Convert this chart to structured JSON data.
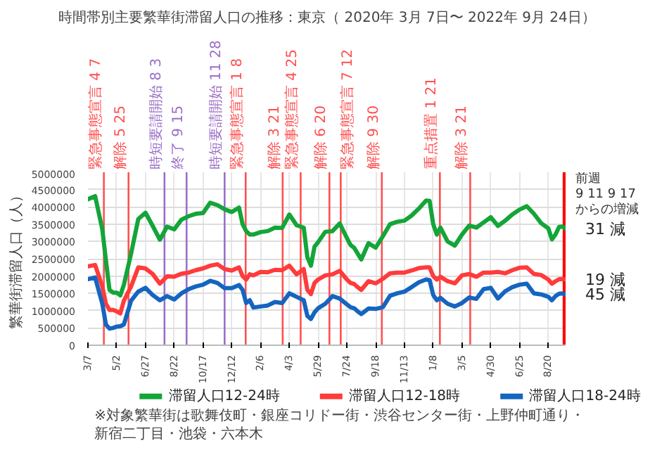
{
  "chart_data": {
    "type": "line",
    "title": "時間帯別主要繁華街滞留人口の推移：東京（ 2020年 3月 7日〜 2022年 9月 24日）",
    "ylabel": "繁華街滞留人口（人）",
    "x": [
      "2020-03-07",
      "2020-03-21",
      "2020-04-04",
      "2020-04-11",
      "2020-04-18",
      "2020-04-25",
      "2020-05-02",
      "2020-05-09",
      "2020-05-16",
      "2020-05-30",
      "2020-06-13",
      "2020-06-27",
      "2020-07-11",
      "2020-07-25",
      "2020-08-08",
      "2020-08-22",
      "2020-09-05",
      "2020-09-19",
      "2020-10-03",
      "2020-10-17",
      "2020-10-31",
      "2020-11-14",
      "2020-11-28",
      "2020-12-12",
      "2020-12-26",
      "2021-01-02",
      "2021-01-09",
      "2021-01-16",
      "2021-01-23",
      "2021-02-06",
      "2021-02-20",
      "2021-03-06",
      "2021-03-20",
      "2021-04-03",
      "2021-04-17",
      "2021-05-01",
      "2021-05-08",
      "2021-05-15",
      "2021-05-22",
      "2021-05-29",
      "2021-06-12",
      "2021-06-26",
      "2021-07-10",
      "2021-07-24",
      "2021-07-31",
      "2021-08-07",
      "2021-08-14",
      "2021-08-21",
      "2021-09-04",
      "2021-09-18",
      "2021-10-02",
      "2021-10-16",
      "2021-10-30",
      "2021-11-13",
      "2021-11-27",
      "2021-12-11",
      "2021-12-25",
      "2022-01-01",
      "2022-01-08",
      "2022-01-15",
      "2022-01-22",
      "2022-02-05",
      "2022-02-19",
      "2022-03-05",
      "2022-03-19",
      "2022-04-02",
      "2022-04-16",
      "2022-04-30",
      "2022-05-14",
      "2022-05-28",
      "2022-06-11",
      "2022-06-25",
      "2022-07-09",
      "2022-07-23",
      "2022-08-06",
      "2022-08-20",
      "2022-08-27",
      "2022-09-03",
      "2022-09-10",
      "2022-09-17",
      "2022-09-24"
    ],
    "series": [
      {
        "name": "滞留人口12-24時",
        "color": "#13a538",
        "values": [
          4220000,
          4310000,
          3350000,
          2450000,
          1600000,
          1520000,
          1520000,
          1440000,
          1750000,
          2650000,
          3650000,
          3830000,
          3450000,
          3050000,
          3430000,
          3350000,
          3630000,
          3730000,
          3800000,
          3820000,
          4120000,
          4050000,
          3930000,
          3850000,
          3980000,
          3500000,
          3300000,
          3200000,
          3200000,
          3270000,
          3300000,
          3400000,
          3390000,
          3780000,
          3470000,
          3400000,
          2550000,
          2300000,
          2850000,
          2980000,
          3280000,
          3300000,
          3520000,
          3100000,
          2900000,
          2820000,
          2650000,
          2480000,
          2950000,
          2820000,
          3150000,
          3500000,
          3570000,
          3600000,
          3750000,
          3950000,
          4180000,
          4170000,
          3500000,
          3200000,
          3400000,
          3000000,
          2880000,
          3200000,
          3460000,
          3400000,
          3550000,
          3700000,
          3450000,
          3600000,
          3780000,
          3920000,
          4020000,
          3800000,
          3530000,
          3380000,
          3060000,
          3200000,
          3420000,
          3430000,
          3350000
        ]
      },
      {
        "name": "滞留人口12-18時",
        "color": "#ff3b3b",
        "values": [
          2280000,
          2320000,
          1700000,
          1200000,
          1020000,
          1020000,
          980000,
          920000,
          1290000,
          1700000,
          2250000,
          2220000,
          2060000,
          1780000,
          1990000,
          1980000,
          2070000,
          2100000,
          2170000,
          2220000,
          2300000,
          2340000,
          2200000,
          2160000,
          2250000,
          2000000,
          1900000,
          2050000,
          2020000,
          2120000,
          2110000,
          2180000,
          2170000,
          2300000,
          2050000,
          2200000,
          1600000,
          1480000,
          1800000,
          1900000,
          2020000,
          2050000,
          2150000,
          1900000,
          1800000,
          1770000,
          1680000,
          1600000,
          1850000,
          1790000,
          1920000,
          2080000,
          2100000,
          2100000,
          2160000,
          2230000,
          2250000,
          2250000,
          2000000,
          1900000,
          1980000,
          1850000,
          1790000,
          2020000,
          2060000,
          1980000,
          2100000,
          2100000,
          2120000,
          2080000,
          2170000,
          2240000,
          2250000,
          2060000,
          2030000,
          1900000,
          1780000,
          1850000,
          1910000,
          1910000,
          1900000
        ]
      },
      {
        "name": "滞留人口18-24時",
        "color": "#1565c0",
        "values": [
          1910000,
          1960000,
          1200000,
          600000,
          480000,
          500000,
          540000,
          550000,
          600000,
          1290000,
          1550000,
          1660000,
          1450000,
          1300000,
          1420000,
          1320000,
          1500000,
          1620000,
          1700000,
          1750000,
          1860000,
          1800000,
          1650000,
          1650000,
          1740000,
          1600000,
          1220000,
          1300000,
          1090000,
          1120000,
          1150000,
          1250000,
          1220000,
          1500000,
          1400000,
          1300000,
          850000,
          760000,
          950000,
          1070000,
          1200000,
          1420000,
          1350000,
          1180000,
          1100000,
          1070000,
          980000,
          900000,
          1060000,
          1050000,
          1100000,
          1430000,
          1500000,
          1550000,
          1680000,
          1820000,
          1900000,
          1880000,
          1450000,
          1300000,
          1370000,
          1200000,
          1120000,
          1220000,
          1380000,
          1340000,
          1620000,
          1660000,
          1350000,
          1560000,
          1680000,
          1750000,
          1780000,
          1500000,
          1470000,
          1400000,
          1300000,
          1420000,
          1490000,
          1500000,
          1460000
        ]
      }
    ],
    "xlim": [
      "2020-03-07",
      "2022-09-24"
    ],
    "ylim": [
      0,
      5000000
    ],
    "yticks": [
      0,
      500000,
      1000000,
      1500000,
      2000000,
      2500000,
      3000000,
      3500000,
      4000000,
      4500000,
      5000000
    ],
    "xticks": [
      {
        "value": "2020-03-07",
        "label": "3/7"
      },
      {
        "value": "2020-05-02",
        "label": "5/2"
      },
      {
        "value": "2020-06-27",
        "label": "6/27"
      },
      {
        "value": "2020-08-22",
        "label": "8/22"
      },
      {
        "value": "2020-10-17",
        "label": "10/17"
      },
      {
        "value": "2020-12-12",
        "label": "12/12"
      },
      {
        "value": "2021-02-06",
        "label": "2/6"
      },
      {
        "value": "2021-04-03",
        "label": "4/3"
      },
      {
        "value": "2021-05-29",
        "label": "5/29"
      },
      {
        "value": "2021-07-24",
        "label": "7/24"
      },
      {
        "value": "2021-09-18",
        "label": "9/18"
      },
      {
        "value": "2021-11-13",
        "label": "11/13"
      },
      {
        "value": "2022-01-08",
        "label": "1/8"
      },
      {
        "value": "2022-03-05",
        "label": "3/5"
      },
      {
        "value": "2022-04-30",
        "label": "4/30"
      },
      {
        "value": "2022-06-25",
        "label": "6/25"
      },
      {
        "value": "2022-08-20",
        "label": "8/20"
      }
    ],
    "grid": true,
    "legend": "bottom",
    "ref_lines": [
      {
        "axis": "x",
        "value": "2020-04-07",
        "label": "緊急事態宣言 4 7",
        "color": "#ff5050"
      },
      {
        "axis": "x",
        "value": "2020-05-25",
        "label": "解除 5 25",
        "color": "#ff5050"
      },
      {
        "axis": "x",
        "value": "2020-08-03",
        "label": "時短要請開始 8 3",
        "color": "#9b6fc8"
      },
      {
        "axis": "x",
        "value": "2020-09-15",
        "label": "終了 9 15",
        "color": "#9b6fc8"
      },
      {
        "axis": "x",
        "value": "2020-11-28",
        "label": "時短要請開始 11 28",
        "color": "#9b6fc8"
      },
      {
        "axis": "x",
        "value": "2021-01-08",
        "label": "緊急事態宣言 1 8",
        "color": "#ff5050"
      },
      {
        "axis": "x",
        "value": "2021-03-21",
        "label": "解除 3 21",
        "color": "#ff5050"
      },
      {
        "axis": "x",
        "value": "2021-04-25",
        "label": "緊急事態宣言 4 25",
        "color": "#ff5050"
      },
      {
        "axis": "x",
        "value": "2021-06-20",
        "label": "解除 6 20",
        "color": "#ff5050"
      },
      {
        "axis": "x",
        "value": "2021-07-12",
        "label": "緊急事態宣言 7 12",
        "color": "#ff5050"
      },
      {
        "axis": "x",
        "value": "2021-09-30",
        "label": "解除 9 30",
        "color": "#ff5050"
      },
      {
        "axis": "x",
        "value": "2022-01-21",
        "label": "重点措置 1 21",
        "color": "#ff5050"
      },
      {
        "axis": "x",
        "value": "2022-03-21",
        "label": "解除 3 21",
        "color": "#ff5050"
      }
    ],
    "bands": [
      {
        "axis": "x",
        "from": "2022-09-17",
        "to": "2022-09-24",
        "color": "#ff0000"
      }
    ],
    "annotations": [
      "前週\n9 11 9 17\nからの増減",
      "31 減",
      "19 減",
      "45 減",
      "※対象繁華街は歌舞伎町・銀座コリドー街・渋谷センター街・上野仲町通り・新宿二丁目・池袋・六本木"
    ]
  }
}
